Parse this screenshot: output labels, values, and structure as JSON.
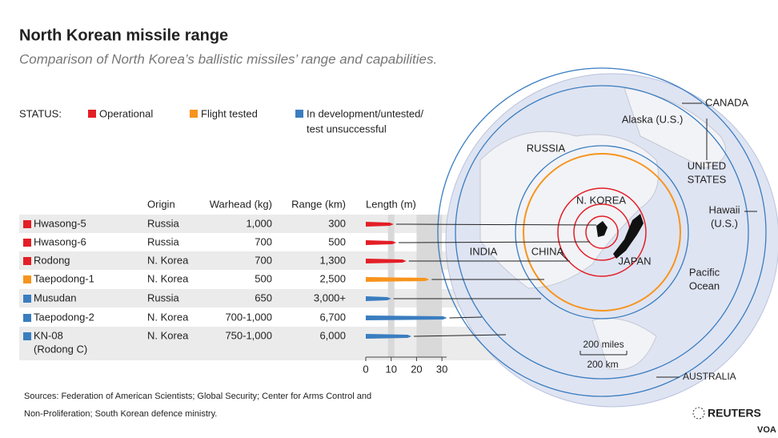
{
  "header": {
    "title": "North Korean missile range",
    "subtitle": "Comparison of North Korea’s ballistic missiles’ range and capabilities."
  },
  "legend": {
    "label": "STATUS:",
    "items": [
      {
        "lines": [
          "Operational"
        ],
        "color": "#e31e26"
      },
      {
        "lines": [
          "Flight tested"
        ],
        "color": "#f7941d"
      },
      {
        "lines": [
          "In development/untested/",
          "test unsuccessful"
        ],
        "color": "#3a7dc0"
      }
    ]
  },
  "table": {
    "columns": [
      "Origin",
      "Warhead (kg)",
      "Range (km)"
    ],
    "rows": [
      {
        "name": [
          "Hwasong-5"
        ],
        "origin": "Russia",
        "warhead": "1,000",
        "range": "300"
      },
      {
        "name": [
          "Hwasong-6"
        ],
        "origin": "Russia",
        "warhead": "700",
        "range": "500"
      },
      {
        "name": [
          "Rodong"
        ],
        "origin": "N. Korea",
        "warhead": "700",
        "range": "1,300"
      },
      {
        "name": [
          "Taepodong-1"
        ],
        "origin": "N. Korea",
        "warhead": "500",
        "range": "2,500"
      },
      {
        "name": [
          "Musudan"
        ],
        "origin": "Russia",
        "warhead": "650",
        "range": "3,000+"
      },
      {
        "name": [
          "Taepodong-2"
        ],
        "origin": "N. Korea",
        "warhead": "700-1,000",
        "range": "6,700"
      },
      {
        "name": [
          "KN-08",
          "(Rodong C)"
        ],
        "origin": "N. Korea",
        "warhead": "750-1,000",
        "range": "6,000"
      }
    ]
  },
  "chart_data": {
    "type": "bar",
    "xlabel": "Length (m)",
    "values": [
      11,
      12,
      16,
      25,
      10,
      32,
      18
    ],
    "colors": [
      "#e31e26",
      "#e31e26",
      "#e31e26",
      "#f7941d",
      "#3a7dc0",
      "#3a7dc0",
      "#3a7dc0"
    ],
    "xlim": [
      0,
      35
    ],
    "xticks": [
      0,
      10,
      20,
      30
    ]
  },
  "map": {
    "labels": [
      {
        "lines": [
          "CANADA"
        ]
      },
      {
        "lines": [
          "Alaska (U.S.)"
        ]
      },
      {
        "lines": [
          "RUSSIA"
        ]
      },
      {
        "lines": [
          "UNITED",
          "STATES"
        ]
      },
      {
        "lines": [
          "Hawaii",
          "(U.S.)"
        ]
      },
      {
        "lines": [
          "N. KOREA"
        ]
      },
      {
        "lines": [
          "INDIA"
        ]
      },
      {
        "lines": [
          "CHINA"
        ]
      },
      {
        "lines": [
          "JAPAN"
        ]
      },
      {
        "lines": [
          "Pacific",
          "Ocean"
        ]
      },
      {
        "lines": [
          "200 miles"
        ]
      },
      {
        "lines": [
          "200 km"
        ]
      },
      {
        "lines": [
          "AUSTRALIA"
        ]
      }
    ]
  },
  "footer": {
    "sources": [
      "Sources: Federation of American Scientists; Global Security; Center for Arms Control and",
      "Non-Proliferation; South Korean defence ministry."
    ],
    "logo": "REUTERS",
    "credit": "VOA"
  }
}
